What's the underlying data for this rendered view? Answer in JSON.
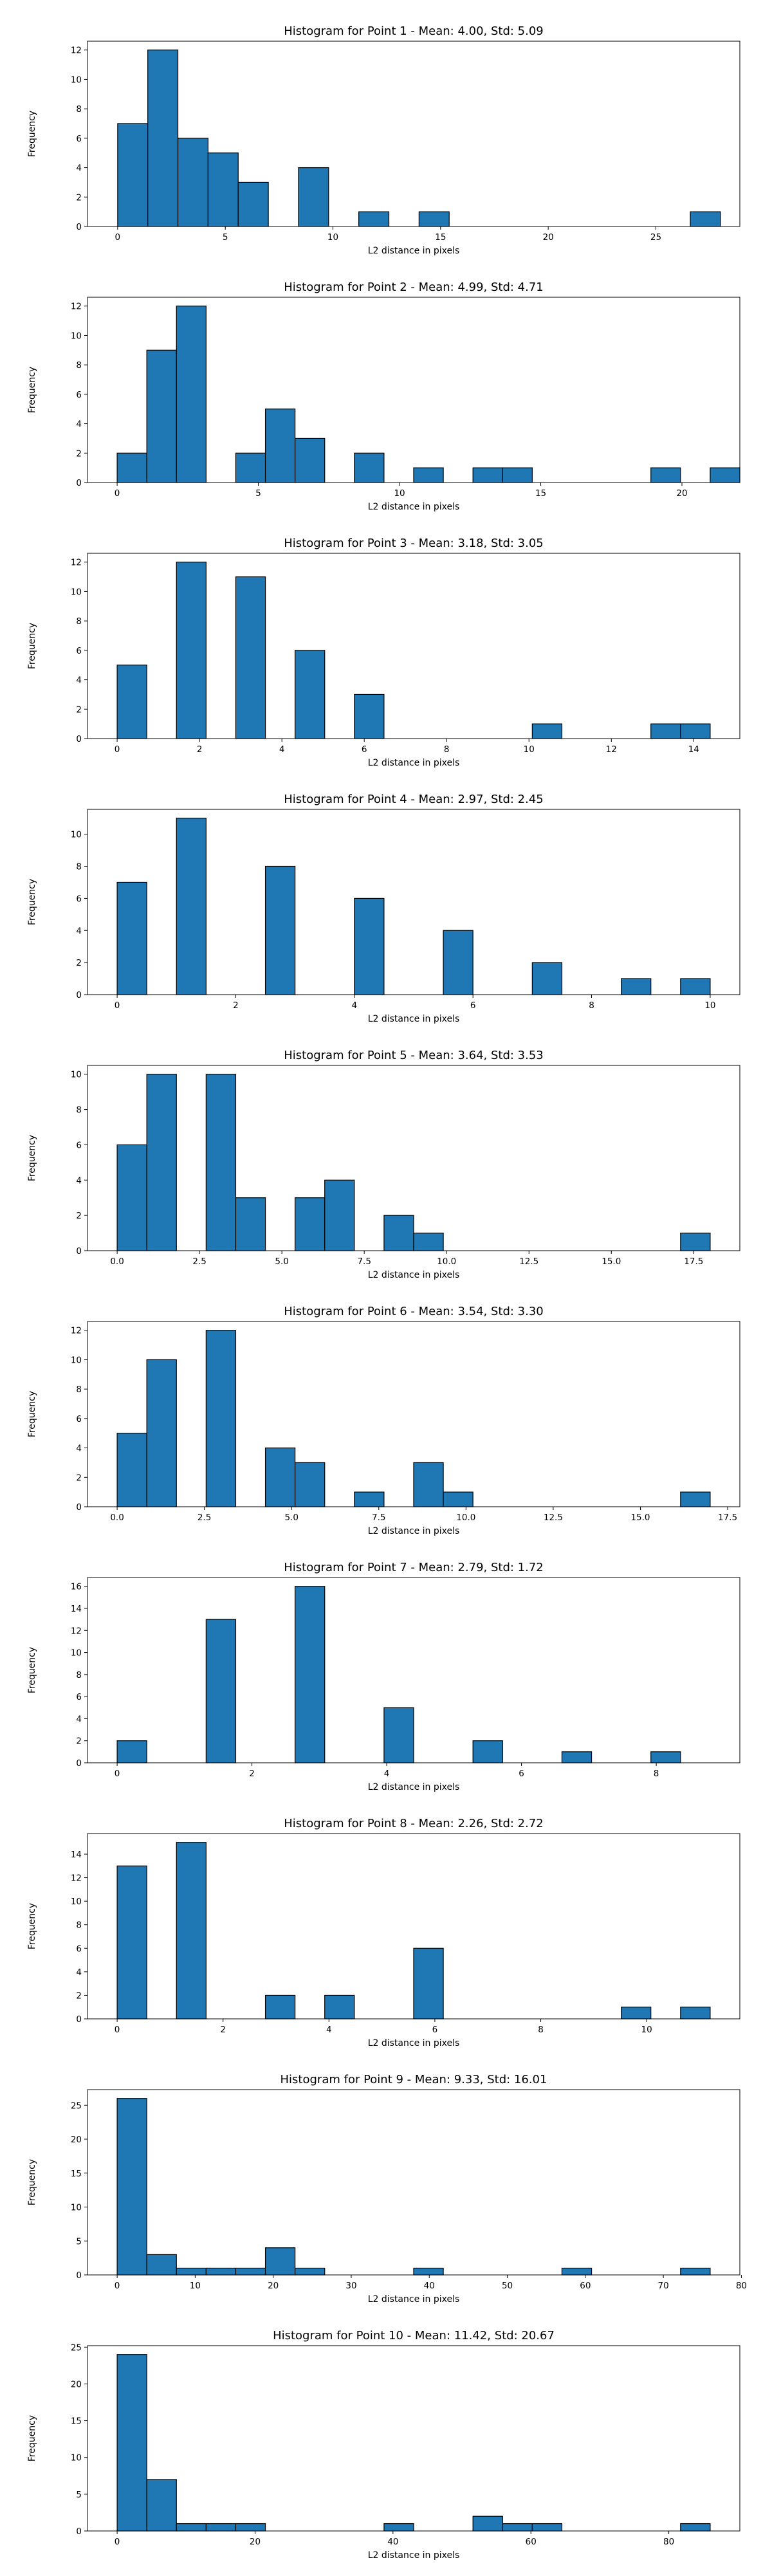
{
  "bar_color": "#1f77b4",
  "edge_color": "#000000",
  "chart_data": [
    {
      "type": "bar",
      "title": "Histogram for Point 1 - Mean: 4.00, Std: 5.09",
      "xlabel": "L2 distance in pixels",
      "ylabel": "Frequency",
      "xlim": [
        -1.4,
        28.9
      ],
      "ylim": [
        0,
        12.6
      ],
      "xticks": [
        0,
        5,
        10,
        15,
        20,
        25
      ],
      "yticks": [
        0,
        2,
        4,
        6,
        8,
        10,
        12
      ],
      "bins": [
        {
          "x0": 0.0,
          "x1": 1.4,
          "count": 7
        },
        {
          "x0": 1.4,
          "x1": 2.8,
          "count": 12
        },
        {
          "x0": 2.8,
          "x1": 4.2,
          "count": 6
        },
        {
          "x0": 4.2,
          "x1": 5.6,
          "count": 5
        },
        {
          "x0": 5.6,
          "x1": 7.0,
          "count": 3
        },
        {
          "x0": 8.4,
          "x1": 9.8,
          "count": 4
        },
        {
          "x0": 11.2,
          "x1": 12.6,
          "count": 1
        },
        {
          "x0": 14.0,
          "x1": 15.4,
          "count": 1
        },
        {
          "x0": 26.6,
          "x1": 28.0,
          "count": 1
        }
      ]
    },
    {
      "type": "bar",
      "title": "Histogram for Point 2 - Mean: 4.99, Std: 4.71",
      "xlabel": "L2 distance in pixels",
      "ylabel": "Frequency",
      "xlim": [
        -1.05,
        22.05
      ],
      "ylim": [
        0,
        12.6
      ],
      "xticks": [
        0,
        5,
        10,
        15,
        20
      ],
      "yticks": [
        0,
        2,
        4,
        6,
        8,
        10,
        12
      ],
      "bins": [
        {
          "x0": 0.0,
          "x1": 1.05,
          "count": 2
        },
        {
          "x0": 1.05,
          "x1": 2.1,
          "count": 9
        },
        {
          "x0": 2.1,
          "x1": 3.15,
          "count": 12
        },
        {
          "x0": 4.2,
          "x1": 5.25,
          "count": 2
        },
        {
          "x0": 5.25,
          "x1": 6.3,
          "count": 5
        },
        {
          "x0": 6.3,
          "x1": 7.35,
          "count": 3
        },
        {
          "x0": 8.4,
          "x1": 9.45,
          "count": 2
        },
        {
          "x0": 10.5,
          "x1": 11.55,
          "count": 1
        },
        {
          "x0": 12.6,
          "x1": 13.65,
          "count": 1
        },
        {
          "x0": 13.65,
          "x1": 14.7,
          "count": 1
        },
        {
          "x0": 18.9,
          "x1": 19.95,
          "count": 1
        },
        {
          "x0": 21.0,
          "x1": 22.05,
          "count": 1
        }
      ]
    },
    {
      "type": "bar",
      "title": "Histogram for Point 3 - Mean: 3.18, Std: 3.05",
      "xlabel": "L2 distance in pixels",
      "ylabel": "Frequency",
      "xlim": [
        -0.72,
        15.12
      ],
      "ylim": [
        0,
        12.6
      ],
      "xticks": [
        0,
        2,
        4,
        6,
        8,
        10,
        12,
        14
      ],
      "yticks": [
        0,
        2,
        4,
        6,
        8,
        10,
        12
      ],
      "bins": [
        {
          "x0": 0.0,
          "x1": 0.72,
          "count": 5
        },
        {
          "x0": 1.44,
          "x1": 2.16,
          "count": 12
        },
        {
          "x0": 2.88,
          "x1": 3.6,
          "count": 11
        },
        {
          "x0": 4.32,
          "x1": 5.04,
          "count": 6
        },
        {
          "x0": 5.76,
          "x1": 6.48,
          "count": 3
        },
        {
          "x0": 10.08,
          "x1": 10.8,
          "count": 1
        },
        {
          "x0": 12.96,
          "x1": 13.68,
          "count": 1
        },
        {
          "x0": 13.68,
          "x1": 14.4,
          "count": 1
        }
      ]
    },
    {
      "type": "bar",
      "title": "Histogram for Point 4 - Mean: 2.97, Std: 2.45",
      "xlabel": "L2 distance in pixels",
      "ylabel": "Frequency",
      "xlim": [
        -0.5,
        10.5
      ],
      "ylim": [
        0,
        11.55
      ],
      "xticks": [
        0,
        2,
        4,
        6,
        8,
        10
      ],
      "yticks": [
        0,
        2,
        4,
        6,
        8,
        10
      ],
      "bins": [
        {
          "x0": 0.0,
          "x1": 0.5,
          "count": 7
        },
        {
          "x0": 1.0,
          "x1": 1.5,
          "count": 11
        },
        {
          "x0": 2.5,
          "x1": 3.0,
          "count": 8
        },
        {
          "x0": 4.0,
          "x1": 4.5,
          "count": 6
        },
        {
          "x0": 5.5,
          "x1": 6.0,
          "count": 4
        },
        {
          "x0": 7.0,
          "x1": 7.5,
          "count": 2
        },
        {
          "x0": 8.5,
          "x1": 9.0,
          "count": 1
        },
        {
          "x0": 9.5,
          "x1": 10.0,
          "count": 1
        }
      ]
    },
    {
      "type": "bar",
      "title": "Histogram for Point 5 - Mean: 3.64, Std: 3.53",
      "xlabel": "L2 distance in pixels",
      "ylabel": "Frequency",
      "xlim": [
        -0.9,
        18.9
      ],
      "ylim": [
        0,
        10.5
      ],
      "xticks": [
        0.0,
        2.5,
        5.0,
        7.5,
        10.0,
        12.5,
        15.0,
        17.5
      ],
      "xtick_labels": [
        "0.0",
        "2.5",
        "5.0",
        "7.5",
        "10.0",
        "12.5",
        "15.0",
        "17.5"
      ],
      "yticks": [
        0,
        2,
        4,
        6,
        8,
        10
      ],
      "bins": [
        {
          "x0": 0.0,
          "x1": 0.9,
          "count": 6
        },
        {
          "x0": 0.9,
          "x1": 1.8,
          "count": 10
        },
        {
          "x0": 2.7,
          "x1": 3.6,
          "count": 10
        },
        {
          "x0": 3.6,
          "x1": 4.5,
          "count": 3
        },
        {
          "x0": 5.4,
          "x1": 6.3,
          "count": 3
        },
        {
          "x0": 6.3,
          "x1": 7.2,
          "count": 4
        },
        {
          "x0": 8.1,
          "x1": 9.0,
          "count": 2
        },
        {
          "x0": 9.0,
          "x1": 9.9,
          "count": 1
        },
        {
          "x0": 17.1,
          "x1": 18.0,
          "count": 1
        }
      ]
    },
    {
      "type": "bar",
      "title": "Histogram for Point 6 - Mean: 3.54, Std: 3.30",
      "xlabel": "L2 distance in pixels",
      "ylabel": "Frequency",
      "xlim": [
        -0.85,
        17.85
      ],
      "ylim": [
        0,
        12.6
      ],
      "xticks": [
        0.0,
        2.5,
        5.0,
        7.5,
        10.0,
        12.5,
        15.0,
        17.5
      ],
      "xtick_labels": [
        "0.0",
        "2.5",
        "5.0",
        "7.5",
        "10.0",
        "12.5",
        "15.0",
        "17.5"
      ],
      "yticks": [
        0,
        2,
        4,
        6,
        8,
        10,
        12
      ],
      "bins": [
        {
          "x0": 0.0,
          "x1": 0.85,
          "count": 5
        },
        {
          "x0": 0.85,
          "x1": 1.7,
          "count": 10
        },
        {
          "x0": 2.55,
          "x1": 3.4,
          "count": 12
        },
        {
          "x0": 4.25,
          "x1": 5.1,
          "count": 4
        },
        {
          "x0": 5.1,
          "x1": 5.95,
          "count": 3
        },
        {
          "x0": 6.8,
          "x1": 7.65,
          "count": 1
        },
        {
          "x0": 8.5,
          "x1": 9.35,
          "count": 3
        },
        {
          "x0": 9.35,
          "x1": 10.2,
          "count": 1
        },
        {
          "x0": 16.15,
          "x1": 17.0,
          "count": 1
        }
      ]
    },
    {
      "type": "bar",
      "title": "Histogram for Point 7 - Mean: 2.79, Std: 1.72",
      "xlabel": "L2 distance in pixels",
      "ylabel": "Frequency",
      "xlim": [
        -0.44,
        9.24
      ],
      "ylim": [
        0,
        16.8
      ],
      "xticks": [
        0,
        2,
        4,
        6,
        8
      ],
      "yticks": [
        0,
        2,
        4,
        6,
        8,
        10,
        12,
        14,
        16
      ],
      "bins": [
        {
          "x0": 0.0,
          "x1": 0.44,
          "count": 2
        },
        {
          "x0": 1.32,
          "x1": 1.76,
          "count": 13
        },
        {
          "x0": 2.64,
          "x1": 3.08,
          "count": 16
        },
        {
          "x0": 3.96,
          "x1": 4.4,
          "count": 5
        },
        {
          "x0": 5.28,
          "x1": 5.72,
          "count": 2
        },
        {
          "x0": 6.6,
          "x1": 7.04,
          "count": 1
        },
        {
          "x0": 7.92,
          "x1": 8.36,
          "count": 1
        }
      ]
    },
    {
      "type": "bar",
      "title": "Histogram for Point 8 - Mean: 2.26, Std: 2.72",
      "xlabel": "L2 distance in pixels",
      "ylabel": "Frequency",
      "xlim": [
        -0.56,
        11.76
      ],
      "ylim": [
        0,
        15.75
      ],
      "xticks": [
        0,
        2,
        4,
        6,
        8,
        10
      ],
      "yticks": [
        0,
        2,
        4,
        6,
        8,
        10,
        12,
        14
      ],
      "bins": [
        {
          "x0": 0.0,
          "x1": 0.56,
          "count": 13
        },
        {
          "x0": 1.12,
          "x1": 1.68,
          "count": 15
        },
        {
          "x0": 2.8,
          "x1": 3.36,
          "count": 2
        },
        {
          "x0": 3.92,
          "x1": 4.48,
          "count": 2
        },
        {
          "x0": 5.6,
          "x1": 6.16,
          "count": 6
        },
        {
          "x0": 9.52,
          "x1": 10.08,
          "count": 1
        },
        {
          "x0": 10.64,
          "x1": 11.2,
          "count": 1
        }
      ]
    },
    {
      "type": "bar",
      "title": "Histogram for Point 9 - Mean: 9.33, Std: 16.01",
      "xlabel": "L2 distance in pixels",
      "ylabel": "Frequency",
      "xlim": [
        -3.8,
        79.8
      ],
      "ylim": [
        0,
        27.3
      ],
      "xticks": [
        0,
        10,
        20,
        30,
        40,
        50,
        60,
        70,
        80
      ],
      "yticks": [
        0,
        5,
        10,
        15,
        20,
        25
      ],
      "bins": [
        {
          "x0": 0.0,
          "x1": 3.8,
          "count": 26
        },
        {
          "x0": 3.8,
          "x1": 7.6,
          "count": 3
        },
        {
          "x0": 7.6,
          "x1": 11.4,
          "count": 1
        },
        {
          "x0": 11.4,
          "x1": 15.2,
          "count": 1
        },
        {
          "x0": 15.2,
          "x1": 19.0,
          "count": 1
        },
        {
          "x0": 19.0,
          "x1": 22.8,
          "count": 4
        },
        {
          "x0": 22.8,
          "x1": 26.6,
          "count": 1
        },
        {
          "x0": 38.0,
          "x1": 41.8,
          "count": 1
        },
        {
          "x0": 57.0,
          "x1": 60.8,
          "count": 1
        },
        {
          "x0": 72.2,
          "x1": 76.0,
          "count": 1
        }
      ]
    },
    {
      "type": "bar",
      "title": "Histogram for Point 10 - Mean: 11.42, Std: 20.67",
      "xlabel": "L2 distance in pixels",
      "ylabel": "Frequency",
      "xlim": [
        -4.3,
        90.3
      ],
      "ylim": [
        0,
        25.2
      ],
      "xticks": [
        0,
        20,
        40,
        60,
        80
      ],
      "yticks": [
        0,
        5,
        10,
        15,
        20,
        25
      ],
      "bins": [
        {
          "x0": 0.0,
          "x1": 4.3,
          "count": 24
        },
        {
          "x0": 4.3,
          "x1": 8.6,
          "count": 7
        },
        {
          "x0": 8.6,
          "x1": 12.9,
          "count": 1
        },
        {
          "x0": 12.9,
          "x1": 17.2,
          "count": 1
        },
        {
          "x0": 17.2,
          "x1": 21.5,
          "count": 1
        },
        {
          "x0": 38.7,
          "x1": 43.0,
          "count": 1
        },
        {
          "x0": 51.6,
          "x1": 55.9,
          "count": 2
        },
        {
          "x0": 55.9,
          "x1": 60.2,
          "count": 1
        },
        {
          "x0": 60.2,
          "x1": 64.5,
          "count": 1
        },
        {
          "x0": 81.7,
          "x1": 86.0,
          "count": 1
        }
      ]
    }
  ]
}
